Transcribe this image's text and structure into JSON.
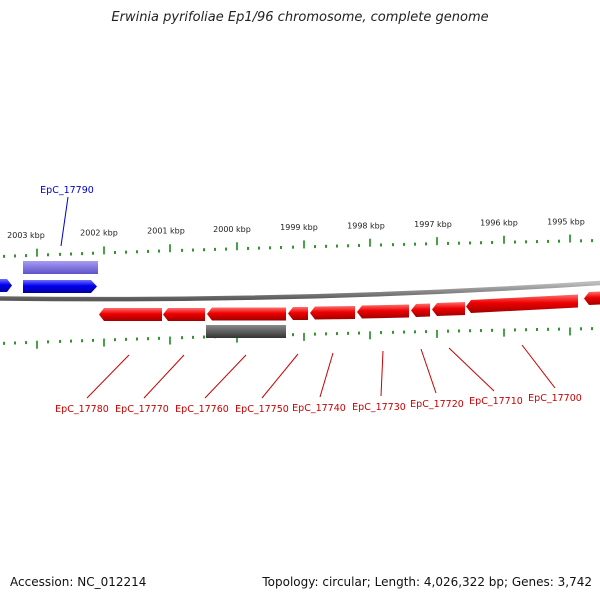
{
  "title": "Erwinia pyrifoliae Ep1/96 chromosome, complete genome",
  "footer": {
    "accession": "Accession: NC_012214",
    "summary": "Topology: circular; Length: 4,026,322 bp; Genes: 3,742"
  },
  "colors": {
    "forward_gene": "#0000ee",
    "forward_cds": "#7a6ee0",
    "reverse_gene": "#ee0000",
    "reverse_cds": "#555555",
    "backbone": "#888888",
    "tick": "#1a8a1a"
  },
  "scale_labels": [
    "2003 kbp",
    "2002 kbp",
    "2001 kbp",
    "2000 kbp",
    "1999 kbp",
    "1998 kbp",
    "1997 kbp",
    "1996 kbp",
    "1995 kbp"
  ],
  "forward_labels": [
    "EpC_17790"
  ],
  "reverse_labels": [
    "EpC_17780",
    "EpC_17770",
    "EpC_17760",
    "EpC_17750",
    "EpC_17740",
    "EpC_17730",
    "EpC_17720",
    "EpC_17710",
    "EpC_17700"
  ]
}
